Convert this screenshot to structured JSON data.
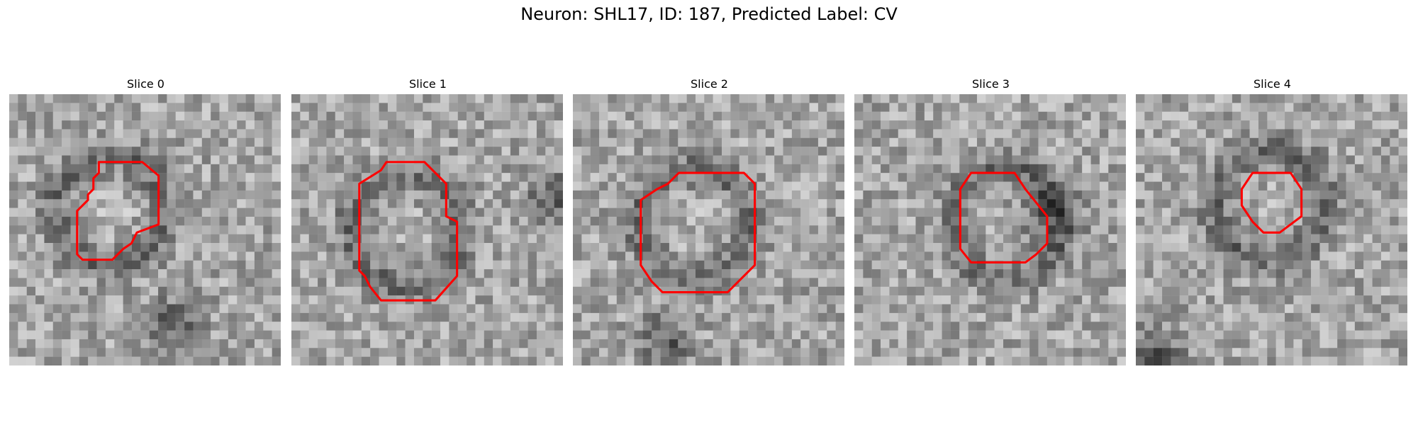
{
  "figure": {
    "title": "Neuron: SHL17, ID: 187, Predicted Label: CV"
  },
  "colors": {
    "contour": "#ff0000",
    "background": "#ffffff"
  },
  "slices": [
    {
      "title": "Slice 0",
      "contour": [
        [
          0.33,
          0.25
        ],
        [
          0.49,
          0.25
        ],
        [
          0.55,
          0.3
        ],
        [
          0.55,
          0.48
        ],
        [
          0.47,
          0.51
        ],
        [
          0.45,
          0.55
        ],
        [
          0.42,
          0.57
        ],
        [
          0.38,
          0.61
        ],
        [
          0.27,
          0.61
        ],
        [
          0.25,
          0.59
        ],
        [
          0.25,
          0.43
        ],
        [
          0.29,
          0.39
        ],
        [
          0.29,
          0.37
        ],
        [
          0.31,
          0.35
        ],
        [
          0.31,
          0.31
        ],
        [
          0.33,
          0.29
        ]
      ]
    },
    {
      "title": "Slice 1",
      "contour": [
        [
          0.35,
          0.25
        ],
        [
          0.49,
          0.25
        ],
        [
          0.57,
          0.33
        ],
        [
          0.57,
          0.45
        ],
        [
          0.61,
          0.47
        ],
        [
          0.61,
          0.67
        ],
        [
          0.53,
          0.76
        ],
        [
          0.33,
          0.76
        ],
        [
          0.29,
          0.71
        ],
        [
          0.27,
          0.67
        ],
        [
          0.25,
          0.65
        ],
        [
          0.25,
          0.33
        ],
        [
          0.33,
          0.28
        ]
      ]
    },
    {
      "title": "Slice 2",
      "contour": [
        [
          0.35,
          0.33
        ],
        [
          0.39,
          0.29
        ],
        [
          0.63,
          0.29
        ],
        [
          0.65,
          0.31
        ],
        [
          0.67,
          0.33
        ],
        [
          0.67,
          0.63
        ],
        [
          0.57,
          0.73
        ],
        [
          0.33,
          0.73
        ],
        [
          0.29,
          0.69
        ],
        [
          0.25,
          0.63
        ],
        [
          0.25,
          0.39
        ],
        [
          0.31,
          0.35
        ]
      ]
    },
    {
      "title": "Slice 3",
      "contour": [
        [
          0.43,
          0.29
        ],
        [
          0.59,
          0.29
        ],
        [
          0.63,
          0.35
        ],
        [
          0.71,
          0.45
        ],
        [
          0.71,
          0.55
        ],
        [
          0.69,
          0.57
        ],
        [
          0.67,
          0.59
        ],
        [
          0.63,
          0.62
        ],
        [
          0.43,
          0.62
        ],
        [
          0.39,
          0.57
        ],
        [
          0.39,
          0.35
        ]
      ]
    },
    {
      "title": "Slice 4",
      "contour": [
        [
          0.43,
          0.29
        ],
        [
          0.57,
          0.29
        ],
        [
          0.61,
          0.35
        ],
        [
          0.61,
          0.45
        ],
        [
          0.53,
          0.51
        ],
        [
          0.47,
          0.51
        ],
        [
          0.43,
          0.47
        ],
        [
          0.39,
          0.41
        ],
        [
          0.39,
          0.35
        ]
      ]
    }
  ]
}
